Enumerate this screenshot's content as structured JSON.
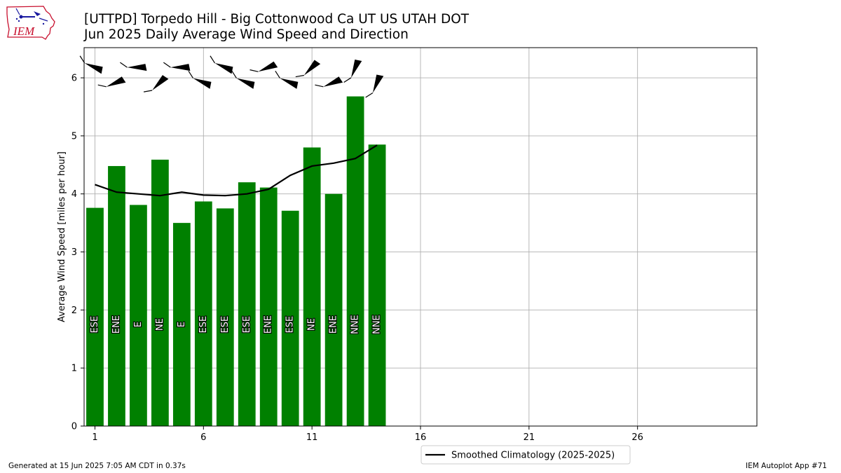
{
  "header": {
    "title_line1": "[UTTPD] Torpedo Hill - Big Cottonwood Ca UT US UTAH DOT",
    "title_line2": "Jun 2025 Daily Average Wind Speed and Direction",
    "logo_text": "IEM"
  },
  "footer": {
    "generated": "Generated at 15 Jun 2025 7:05 AM CDT in 0.37s",
    "app": "IEM Autoplot App #71"
  },
  "colors": {
    "bar": "#008000",
    "climo_line": "#000000",
    "grid": "#b0b0b0",
    "logo_red": "#c8102e",
    "logo_blue": "#1a1aa0"
  },
  "chart_data": {
    "type": "bar",
    "ylabel": "Average Wind Speed [miles per hour]",
    "xlabel": "",
    "xlim": [
      0.5,
      31.5
    ],
    "ylim": [
      0,
      6.52
    ],
    "grid": true,
    "x_ticks": [
      1,
      6,
      11,
      16,
      21,
      26
    ],
    "y_ticks": [
      0,
      1,
      2,
      3,
      4,
      5,
      6
    ],
    "days": [
      1,
      2,
      3,
      4,
      5,
      6,
      7,
      8,
      9,
      10,
      11,
      12,
      13,
      14
    ],
    "values": [
      3.76,
      4.48,
      3.81,
      4.59,
      3.5,
      3.87,
      3.75,
      4.2,
      4.11,
      3.71,
      4.8,
      4.0,
      5.68,
      4.85
    ],
    "direction_labels": [
      "ESE",
      "ENE",
      "E",
      "NE",
      "E",
      "ESE",
      "ESE",
      "ESE",
      "ENE",
      "ESE",
      "NE",
      "ENE",
      "NNE",
      "NNE"
    ],
    "climatology": {
      "name": "Smoothed Climatology (2025-2025)",
      "values": [
        4.16,
        4.03,
        4.0,
        3.97,
        4.03,
        3.98,
        3.97,
        4.0,
        4.08,
        4.32,
        4.48,
        4.53,
        4.61,
        4.84
      ]
    },
    "legend_position": "lower center, below axes"
  }
}
